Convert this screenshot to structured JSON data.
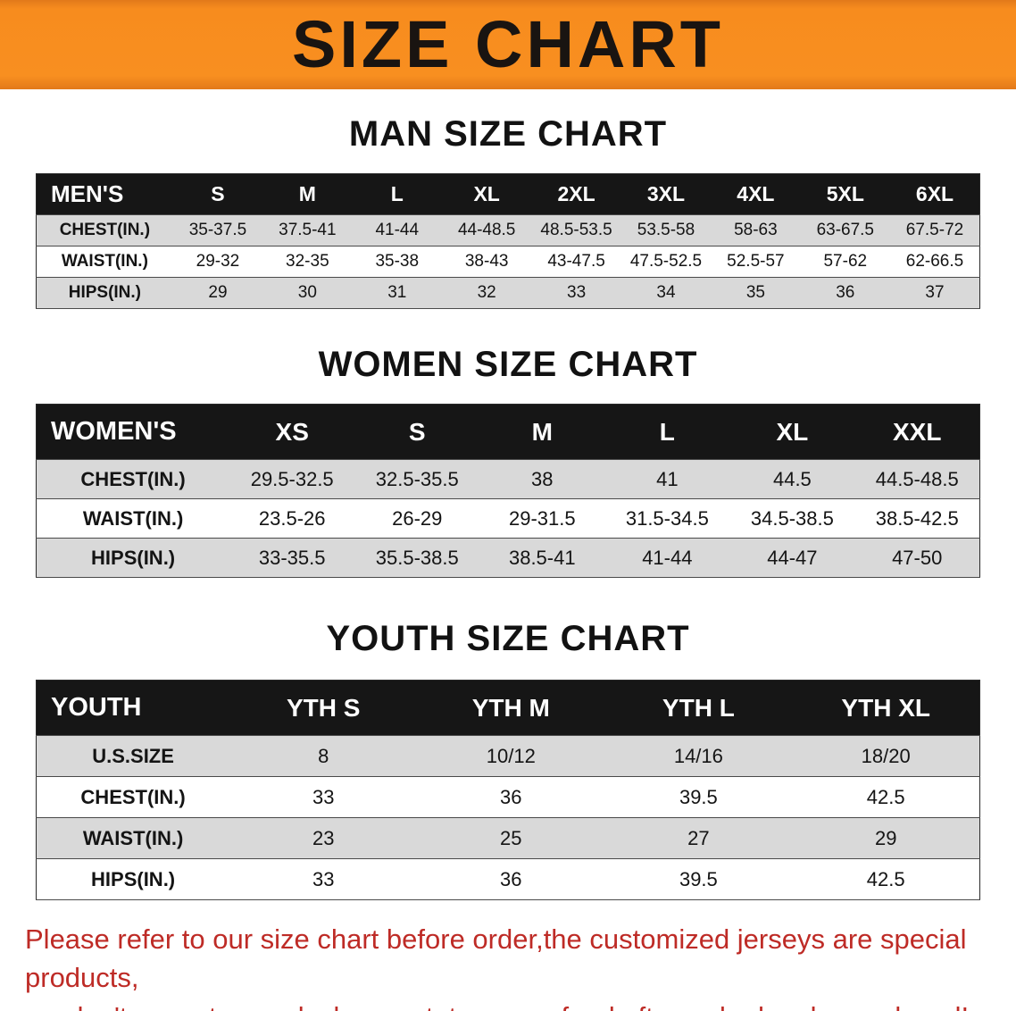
{
  "banner": {
    "title": "SIZE CHART",
    "bg_color": "#f78c1e"
  },
  "sections": [
    {
      "heading": "MAN SIZE CHART",
      "table": {
        "corner": "MEN'S",
        "columns": [
          "S",
          "M",
          "L",
          "XL",
          "2XL",
          "3XL",
          "4XL",
          "5XL",
          "6XL"
        ],
        "rows": [
          {
            "label": "CHEST(IN.)",
            "values": [
              "35-37.5",
              "37.5-41",
              "41-44",
              "44-48.5",
              "48.5-53.5",
              "53.5-58",
              "58-63",
              "63-67.5",
              "67.5-72"
            ]
          },
          {
            "label": "WAIST(IN.)",
            "values": [
              "29-32",
              "32-35",
              "35-38",
              "38-43",
              "43-47.5",
              "47.5-52.5",
              "52.5-57",
              "57-62",
              "62-66.5"
            ]
          },
          {
            "label": "HIPS(IN.)",
            "values": [
              "29",
              "30",
              "31",
              "32",
              "33",
              "34",
              "35",
              "36",
              "37"
            ]
          }
        ]
      }
    },
    {
      "heading": "WOMEN SIZE CHART",
      "table": {
        "corner": "WOMEN'S",
        "columns": [
          "XS",
          "S",
          "M",
          "L",
          "XL",
          "XXL"
        ],
        "rows": [
          {
            "label": "CHEST(IN.)",
            "values": [
              "29.5-32.5",
              "32.5-35.5",
              "38",
              "41",
              "44.5",
              "44.5-48.5"
            ]
          },
          {
            "label": "WAIST(IN.)",
            "values": [
              "23.5-26",
              "26-29",
              "29-31.5",
              "31.5-34.5",
              "34.5-38.5",
              "38.5-42.5"
            ]
          },
          {
            "label": "HIPS(IN.)",
            "values": [
              "33-35.5",
              "35.5-38.5",
              "38.5-41",
              "41-44",
              "44-47",
              "47-50"
            ]
          }
        ]
      }
    },
    {
      "heading": "YOUTH SIZE CHART",
      "table": {
        "corner": "YOUTH",
        "columns": [
          "YTH S",
          "YTH M",
          "YTH L",
          "YTH XL"
        ],
        "rows": [
          {
            "label": "U.S.SIZE",
            "values": [
              "8",
              "10/12",
              "14/16",
              "18/20"
            ]
          },
          {
            "label": "CHEST(IN.)",
            "values": [
              "33",
              "36",
              "39.5",
              "42.5"
            ]
          },
          {
            "label": "WAIST(IN.)",
            "values": [
              "23",
              "25",
              "27",
              "29"
            ]
          },
          {
            "label": "HIPS(IN.)",
            "values": [
              "33",
              "36",
              "39.5",
              "42.5"
            ]
          }
        ]
      }
    }
  ],
  "disclaimer": {
    "line1": "Please refer to our size chart before order,the customized jerseys are special products,",
    "line2": "we don't accept cancel, change, teturn or refund after order has been placed!",
    "color": "#be2b26"
  }
}
